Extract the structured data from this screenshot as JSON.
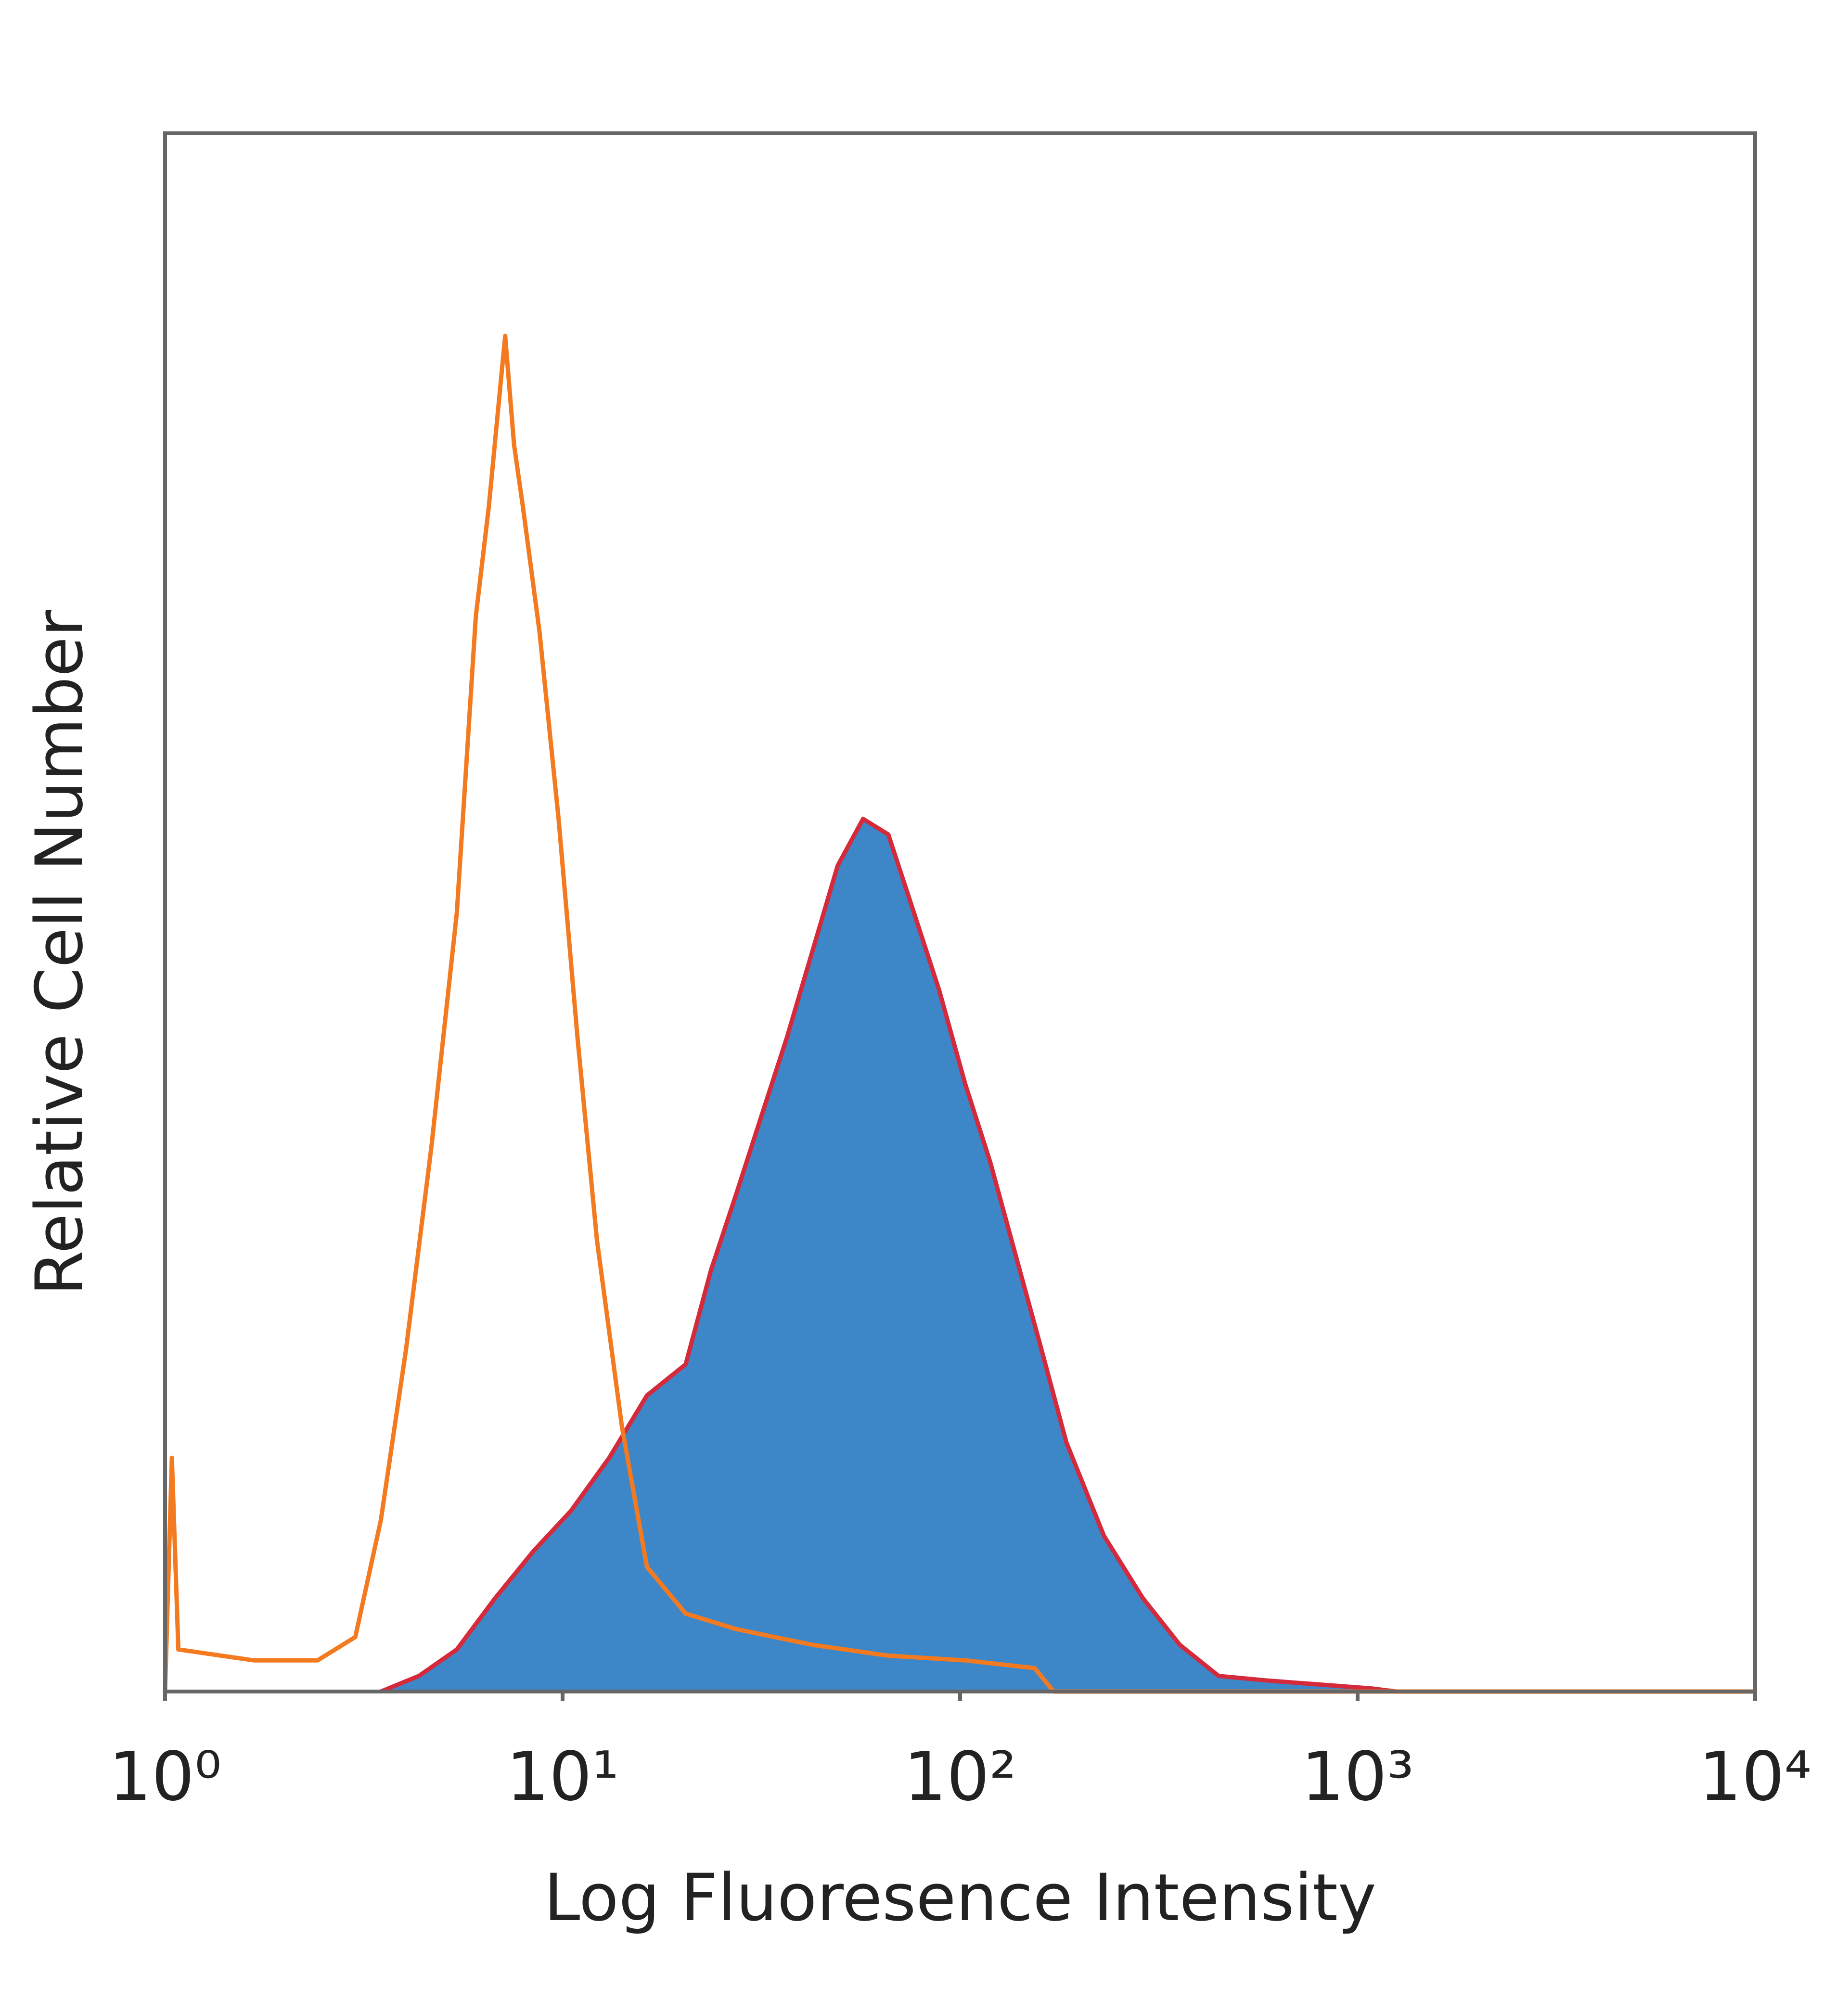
{
  "chart_data": {
    "type": "histogram",
    "xlabel": "Log Fluoresence Intensity",
    "ylabel": "Relative Cell Number",
    "xscale": "log",
    "xlim": [
      1,
      10000
    ],
    "ylim": [
      0,
      100
    ],
    "xticks": [
      {
        "value": 1,
        "label": "10⁰"
      },
      {
        "value": 10,
        "label": "10¹"
      },
      {
        "value": 100,
        "label": "10²"
      },
      {
        "value": 1000,
        "label": "10³"
      },
      {
        "value": 10000,
        "label": "10⁴"
      }
    ],
    "series": [
      {
        "color": "#d42a3c",
        "fill": "#3d87c9",
        "x": [
          3.49,
          4.35,
          5.42,
          6.77,
          8.44,
          10.5,
          13.1,
          16.3,
          20.4,
          23.6,
          27.4,
          31.7,
          36.7,
          42.5,
          49.2,
          57.0,
          66.0,
          76.5,
          88.6,
          103,
          119,
          138,
          160,
          185,
          230,
          288,
          357,
          447,
          596,
          1080,
          1250
        ],
        "values": [
          0,
          1,
          2.7,
          6,
          9,
          11.6,
          15,
          19,
          21,
          27,
          32,
          37,
          42,
          47.5,
          53,
          56,
          55,
          50,
          45,
          39,
          34,
          28,
          22,
          16,
          10,
          6,
          3,
          1,
          0.7,
          0.2,
          0
        ]
      },
      {
        "color": "#f47a20",
        "x": [
          1,
          1.04,
          1.08,
          1.67,
          2.42,
          3.01,
          3.49,
          4.04,
          4.68,
          5.42,
          6.05,
          6.52,
          7.17,
          7.55,
          7.95,
          8.75,
          9.77,
          10.9,
          12.2,
          14.1,
          16.3,
          20.4,
          27.4,
          42.5,
          66.0,
          103,
          154,
          172,
          10000
        ],
        "values": [
          0,
          15,
          2.7,
          2,
          2,
          3.5,
          11,
          22,
          35,
          50,
          69,
          76,
          87,
          80,
          76,
          68,
          56,
          42,
          29,
          17,
          8,
          5,
          4,
          3,
          2.3,
          2,
          1.5,
          0,
          0
        ]
      }
    ]
  }
}
